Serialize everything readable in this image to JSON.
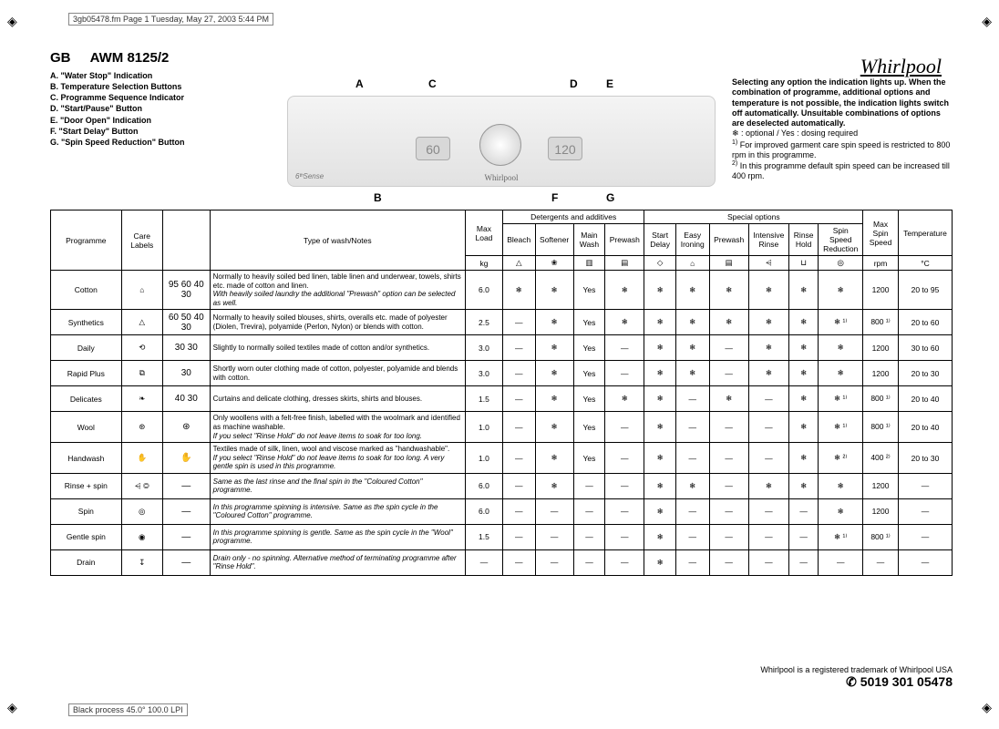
{
  "meta": {
    "top": "3gb05478.fm  Page 1  Tuesday, May 27, 2003  5:44 PM",
    "bottom": "Black process 45.0° 100.0 LPI"
  },
  "brand": "Whirlpool",
  "title": {
    "region": "GB",
    "model": "AWM 8125/2"
  },
  "legend": [
    "A. \"Water Stop\" Indication",
    "B. Temperature Selection Buttons",
    "C. Programme Sequence Indicator",
    "D. \"Start/Pause\" Button",
    "E. \"Door Open\" Indication",
    "F. \"Start Delay\" Button",
    "G. \"Spin Speed Reduction\" Button"
  ],
  "pointers": [
    "A",
    "B",
    "C",
    "D",
    "E",
    "F",
    "G"
  ],
  "panel": {
    "left_disp": "60",
    "right_disp": "120"
  },
  "right_notes": {
    "bold": "Selecting any option the indication lights up. When the combination of programme, additional options and temperature is not possible, the indication lights switch off automatically. Unsuitable combinations of options are deselected automatically.",
    "line2": "❄ : optional / Yes : dosing required",
    "fn1": "For improved garment care spin speed is restricted to 800 rpm in this programme.",
    "fn2": "In this programme default spin speed can be increased till 400 rpm."
  },
  "table": {
    "group_headers": {
      "detergents": "Detergents and additives",
      "special": "Special options"
    },
    "headers": {
      "programme": "Programme",
      "care": "Care Labels",
      "type": "Type of wash/Notes",
      "maxload": "Max Load",
      "kg": "kg",
      "bleach": "Bleach",
      "softener": "Softener",
      "mainwash": "Main Wash",
      "prewash_d": "Prewash",
      "startdelay": "Start Delay",
      "easyiron": "Easy Ironing",
      "prewash_s": "Prewash",
      "intrinse": "Intensive Rinse",
      "rinsehold": "Rinse Hold",
      "spinred": "Spin Speed Reduction",
      "maxspin": "Max Spin Speed",
      "rpm": "rpm",
      "temp": "Temperature",
      "c": "°C"
    },
    "rows": [
      {
        "prog": "Cotton",
        "care": "⌂",
        "carelabels": "95 60\n40 30",
        "notes": "Normally to heavily soiled bed linen, table linen and underwear, towels, shirts etc. made of cotton and linen.",
        "notes_it": "With heavily soiled laundry the additional \"Prewash\" option can be selected as well.",
        "maxload": "6.0",
        "cells": [
          "❄",
          "❄",
          "Yes",
          "❄",
          "❄",
          "❄",
          "❄",
          "❄",
          "❄",
          "❄"
        ],
        "spin": "1200",
        "temp": "20 to 95"
      },
      {
        "prog": "Synthetics",
        "care": "△",
        "carelabels": "60 50\n40 30",
        "notes": "Normally to heavily soiled blouses, shirts, overalls etc. made of polyester (Diolen, Trevira), polyamide (Perlon, Nylon) or blends with cotton.",
        "notes_it": "",
        "maxload": "2.5",
        "cells": [
          "—",
          "❄",
          "Yes",
          "❄",
          "❄",
          "❄",
          "❄",
          "❄",
          "❄",
          "❄ ¹⁾"
        ],
        "spin": "800 ¹⁾",
        "temp": "20 to 60"
      },
      {
        "prog": "Daily",
        "care": "⟲",
        "carelabels": "30 30",
        "notes": "Slightly to normally soiled textiles made of cotton and/or synthetics.",
        "notes_it": "",
        "maxload": "3.0",
        "cells": [
          "—",
          "❄",
          "Yes",
          "—",
          "❄",
          "❄",
          "—",
          "❄",
          "❄",
          "❄"
        ],
        "spin": "1200",
        "temp": "30 to 60"
      },
      {
        "prog": "Rapid Plus",
        "care": "⧉",
        "carelabels": "30",
        "notes": "Shortly worn outer clothing made of cotton, polyester, polyamide and blends with cotton.",
        "notes_it": "",
        "maxload": "3.0",
        "cells": [
          "—",
          "❄",
          "Yes",
          "—",
          "❄",
          "❄",
          "—",
          "❄",
          "❄",
          "❄"
        ],
        "spin": "1200",
        "temp": "20 to 30"
      },
      {
        "prog": "Delicates",
        "care": "❧",
        "carelabels": "40 30",
        "notes": "Curtains and delicate clothing, dresses skirts, shirts and blouses.",
        "notes_it": "",
        "maxload": "1.5",
        "cells": [
          "—",
          "❄",
          "Yes",
          "❄",
          "❄",
          "—",
          "❄",
          "—",
          "❄",
          "❄ ¹⁾"
        ],
        "spin": "800 ¹⁾",
        "temp": "20 to 40"
      },
      {
        "prog": "Wool",
        "care": "⊛",
        "carelabels": "⊛",
        "notes": "Only woollens with a felt-free finish, labelled with the woolmark and identified as machine washable.",
        "notes_it": "If you select \"Rinse Hold\" do not leave items to soak for too long.",
        "maxload": "1.0",
        "cells": [
          "—",
          "❄",
          "Yes",
          "—",
          "❄",
          "—",
          "—",
          "—",
          "❄",
          "❄ ¹⁾"
        ],
        "spin": "800 ¹⁾",
        "temp": "20 to 40"
      },
      {
        "prog": "Handwash",
        "care": "✋",
        "carelabels": "✋",
        "notes": "Textiles made of silk, linen, wool and viscose marked as \"handwashable\".",
        "notes_it": "If you select \"Rinse Hold\" do not leave items to soak for too long. A very gentle spin is used in this programme.",
        "maxload": "1.0",
        "cells": [
          "—",
          "❄",
          "Yes",
          "—",
          "❄",
          "—",
          "—",
          "—",
          "❄",
          "❄ ²⁾"
        ],
        "spin": "400 ²⁾",
        "temp": "20 to 30"
      },
      {
        "prog": "Rinse + spin",
        "care": "⩤ ◎",
        "carelabels": "—",
        "notes": "",
        "notes_it": "Same as the last rinse and the final spin in the \"Coloured Cotton\" programme.",
        "maxload": "6.0",
        "cells": [
          "—",
          "❄",
          "—",
          "—",
          "❄",
          "❄",
          "—",
          "❄",
          "❄",
          "❄"
        ],
        "spin": "1200",
        "temp": "—"
      },
      {
        "prog": "Spin",
        "care": "◎",
        "carelabels": "—",
        "notes": "",
        "notes_it": "In this programme spinning is intensive. Same as the spin cycle in the \"Coloured Cotton\" programme.",
        "maxload": "6.0",
        "cells": [
          "—",
          "—",
          "—",
          "—",
          "❄",
          "—",
          "—",
          "—",
          "—",
          "❄"
        ],
        "spin": "1200",
        "temp": "—"
      },
      {
        "prog": "Gentle spin",
        "care": "◉",
        "carelabels": "—",
        "notes": "",
        "notes_it": "In this programme spinning is gentle. Same as the spin cycle in the \"Wool\" programme.",
        "maxload": "1.5",
        "cells": [
          "—",
          "—",
          "—",
          "—",
          "❄",
          "—",
          "—",
          "—",
          "—",
          "❄ ¹⁾"
        ],
        "spin": "800 ¹⁾",
        "temp": "—"
      },
      {
        "prog": "Drain",
        "care": "↧",
        "carelabels": "—",
        "notes": "",
        "notes_it": "Drain only - no spinning. Alternative method of terminating programme after \"Rinse Hold\".",
        "maxload": "—",
        "cells": [
          "—",
          "—",
          "—",
          "—",
          "❄",
          "—",
          "—",
          "—",
          "—",
          "—"
        ],
        "spin": "—",
        "temp": "—"
      }
    ]
  },
  "footer": {
    "trademark": "Whirlpool is a registered trademark of Whirlpool USA",
    "part": "✆ 5019 301 05478"
  }
}
